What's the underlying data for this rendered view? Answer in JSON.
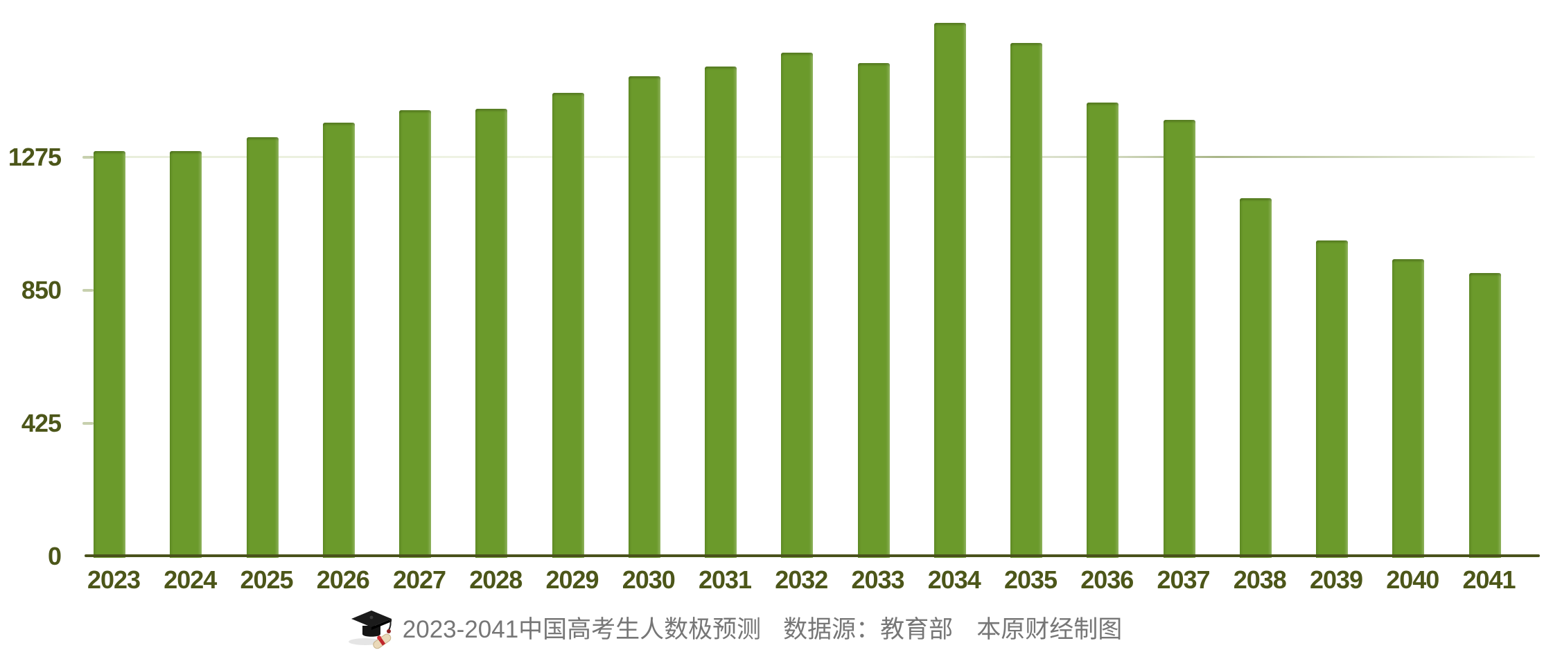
{
  "chart_data": {
    "type": "bar",
    "title": "2023-2041中国高考生人数极预测",
    "source": "数据源：教育部",
    "credit": "本原财经制图",
    "categories": [
      "2023",
      "2024",
      "2025",
      "2026",
      "2027",
      "2028",
      "2029",
      "2030",
      "2031",
      "2032",
      "2033",
      "2034",
      "2035",
      "2036",
      "2037",
      "2038",
      "2039",
      "2040",
      "2041"
    ],
    "values": [
      1295,
      1295,
      1340,
      1385,
      1425,
      1430,
      1480,
      1535,
      1565,
      1610,
      1575,
      1705,
      1640,
      1450,
      1395,
      1145,
      1010,
      950,
      905
    ],
    "xlabel": "",
    "ylabel": "",
    "yticks": [
      0,
      425,
      850,
      1275
    ],
    "ylim": [
      0,
      1777
    ],
    "grid": "faint horizontal line at 1275 only",
    "legend_position": "none",
    "bar_color": "#6b9a2b",
    "axis_color": "#49521b",
    "tick_label_color": "#4c5619",
    "caption_color": "#767676"
  },
  "caption": {
    "icon": "graduation-cap-icon",
    "segments": [
      "2023-2041中国高考生人数极预测",
      "数据源：教育部",
      "本原财经制图"
    ]
  }
}
